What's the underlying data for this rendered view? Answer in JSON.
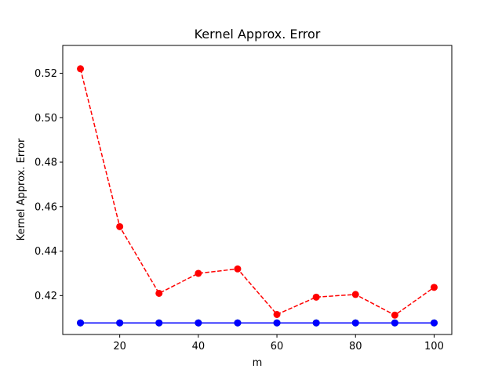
{
  "chart_data": {
    "type": "line",
    "title": "Kernel Approx. Error",
    "xlabel": "m",
    "ylabel": "Kernel Approx. Error",
    "x": [
      10,
      20,
      30,
      40,
      50,
      60,
      70,
      80,
      90,
      100
    ],
    "xlim": [
      5.5,
      104.5
    ],
    "ylim": [
      0.4025,
      0.5325
    ],
    "xticks": [
      20,
      40,
      60,
      80,
      100
    ],
    "yticks": [
      0.42,
      0.44,
      0.46,
      0.48,
      0.5,
      0.52
    ],
    "ytick_labels": [
      "0.42",
      "0.44",
      "0.46",
      "0.48",
      "0.50",
      "0.52"
    ],
    "grid": false,
    "series": [
      {
        "name": "red-dashed",
        "color": "#ff0000",
        "linestyle": "dashed",
        "marker": "circle",
        "values": [
          0.522,
          0.451,
          0.421,
          0.43,
          0.432,
          0.4115,
          0.4193,
          0.4205,
          0.4112,
          0.4237
        ]
      },
      {
        "name": "green-dashed",
        "color": "#008000",
        "linestyle": "dashed",
        "marker": "circle",
        "values": [
          0.4077,
          0.4077,
          0.4077,
          0.4077,
          0.4077,
          0.4077,
          0.4077,
          0.4077,
          0.4077,
          0.4077
        ]
      },
      {
        "name": "blue-solid",
        "color": "#0000ff",
        "linestyle": "solid",
        "marker": "circle",
        "values": [
          0.4077,
          0.4077,
          0.4077,
          0.4077,
          0.4077,
          0.4077,
          0.4077,
          0.4077,
          0.4077,
          0.4077
        ]
      }
    ]
  }
}
